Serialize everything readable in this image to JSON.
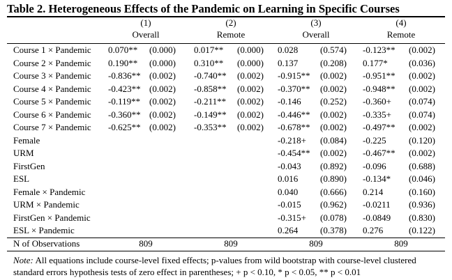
{
  "title": "Table 2. Heterogeneous Effects of the Pandemic on Learning in Specific Courses",
  "columns": [
    {
      "num": "(1)",
      "label": "Overall"
    },
    {
      "num": "(2)",
      "label": "Remote"
    },
    {
      "num": "(3)",
      "label": "Overall"
    },
    {
      "num": "(4)",
      "label": "Remote"
    }
  ],
  "rows": [
    {
      "label": "Course 1 × Pandemic",
      "cells": [
        "0.070**",
        "(0.000)",
        "0.017**",
        "(0.000)",
        "0.028",
        "(0.574)",
        "-0.123**",
        "(0.002)"
      ]
    },
    {
      "label": "Course 2 × Pandemic",
      "cells": [
        "0.190**",
        "(0.000)",
        "0.310**",
        "(0.000)",
        "0.137",
        "(0.208)",
        "0.177*",
        "(0.036)"
      ]
    },
    {
      "label": "Course 3 × Pandemic",
      "cells": [
        "-0.836**",
        "(0.002)",
        "-0.740**",
        "(0.002)",
        "-0.915**",
        "(0.002)",
        "-0.951**",
        "(0.002)"
      ]
    },
    {
      "label": "Course 4 × Pandemic",
      "cells": [
        "-0.423**",
        "(0.002)",
        "-0.858**",
        "(0.002)",
        "-0.370**",
        "(0.002)",
        "-0.948**",
        "(0.002)"
      ]
    },
    {
      "label": "Course 5 × Pandemic",
      "cells": [
        "-0.119**",
        "(0.002)",
        "-0.211**",
        "(0.002)",
        "-0.146",
        "(0.252)",
        "-0.360+",
        "(0.074)"
      ]
    },
    {
      "label": "Course 6 × Pandemic",
      "cells": [
        "-0.360**",
        "(0.002)",
        "-0.149**",
        "(0.002)",
        "-0.446**",
        "(0.002)",
        "-0.335+",
        "(0.074)"
      ]
    },
    {
      "label": "Course 7 × Pandemic",
      "cells": [
        "-0.625**",
        "(0.002)",
        "-0.353**",
        "(0.002)",
        "-0.678**",
        "(0.002)",
        "-0.497**",
        "(0.002)"
      ]
    },
    {
      "label": "Female",
      "cells": [
        "",
        "",
        "",
        "",
        "-0.218+",
        "(0.084)",
        "-0.225",
        "(0.120)"
      ]
    },
    {
      "label": "URM",
      "cells": [
        "",
        "",
        "",
        "",
        "-0.454**",
        "(0.002)",
        "-0.467**",
        "(0.002)"
      ]
    },
    {
      "label": "FirstGen",
      "cells": [
        "",
        "",
        "",
        "",
        "-0.043",
        "(0.892)",
        "-0.096",
        "(0.688)"
      ]
    },
    {
      "label": "ESL",
      "cells": [
        "",
        "",
        "",
        "",
        "0.016",
        "(0.890)",
        "-0.134*",
        "(0.046)"
      ]
    },
    {
      "label": "Female × Pandemic",
      "cells": [
        "",
        "",
        "",
        "",
        "0.040",
        "(0.666)",
        "0.214",
        "(0.160)"
      ]
    },
    {
      "label": "URM × Pandemic",
      "cells": [
        "",
        "",
        "",
        "",
        "-0.015",
        "(0.962)",
        "-0.0211",
        "(0.936)"
      ]
    },
    {
      "label": "FirstGen × Pandemic",
      "cells": [
        "",
        "",
        "",
        "",
        "-0.315+",
        "(0.078)",
        "-0.0849",
        "(0.830)"
      ]
    },
    {
      "label": "ESL × Pandemic",
      "cells": [
        "",
        "",
        "",
        "",
        "0.264",
        "(0.378)",
        "0.276",
        "(0.122)"
      ]
    }
  ],
  "observations": {
    "label": "N of Observations",
    "values": [
      "809",
      "809",
      "809",
      "809"
    ]
  },
  "note": {
    "prefix": "Note:",
    "text": "All equations include course-level fixed effects; p-values from wild bootstrap with course-level clustered standard errors hypothesis tests of zero effect in parentheses; + p < 0.10, * p < 0.05, ** p < 0.01"
  }
}
